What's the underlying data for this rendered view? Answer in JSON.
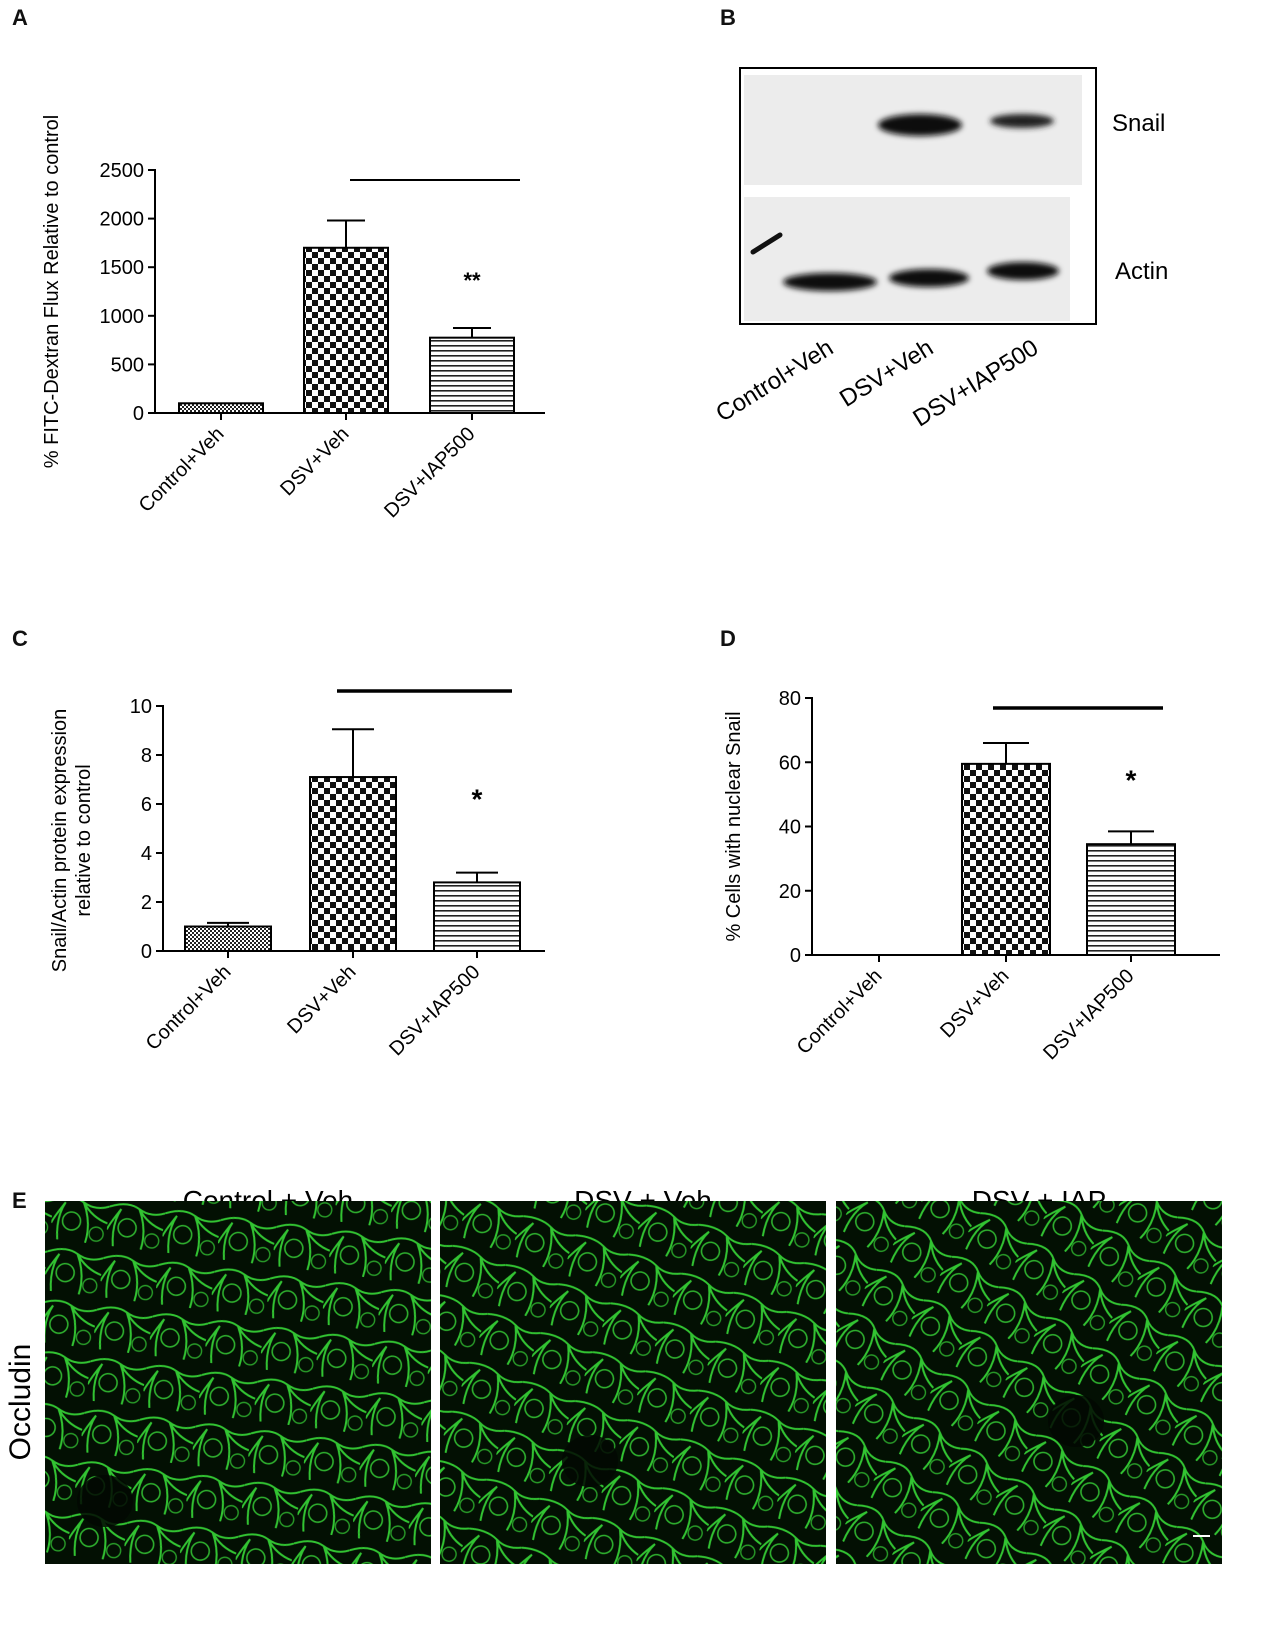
{
  "panels": {
    "A": "A",
    "B": "B",
    "C": "C",
    "D": "D",
    "E": "E"
  },
  "chart_data": [
    {
      "id": "A",
      "type": "bar",
      "categories": [
        "Control+Veh",
        "DSV+Veh",
        "DSV+IAP500"
      ],
      "values": [
        100,
        1700,
        775
      ],
      "errors": [
        0,
        280,
        100
      ],
      "patterns": [
        "fine-check",
        "check",
        "hstripe"
      ],
      "ylabel": "% FITC-Dextran Flux Relative to control",
      "ylim": [
        0,
        2500
      ],
      "yticks": [
        0,
        500,
        1000,
        1500,
        2000,
        2500
      ],
      "significance": [
        {
          "between": [
            1,
            2
          ],
          "label": "**",
          "on": 2
        }
      ]
    },
    {
      "id": "C",
      "type": "bar",
      "categories": [
        "Control+Veh",
        "DSV+Veh",
        "DSV+IAP500"
      ],
      "values": [
        1.0,
        7.1,
        2.8
      ],
      "errors": [
        0.15,
        1.95,
        0.4
      ],
      "patterns": [
        "fine-check",
        "check",
        "hstripe"
      ],
      "ylabel": [
        "Snail/Actin protein expression",
        "relative to control"
      ],
      "ylim": [
        0,
        10
      ],
      "yticks": [
        0,
        2,
        4,
        6,
        8,
        10
      ],
      "significance": [
        {
          "between": [
            1,
            2
          ],
          "label": "*",
          "on": 2
        }
      ]
    },
    {
      "id": "D",
      "type": "bar",
      "categories": [
        "Control+Veh",
        "DSV+Veh",
        "DSV+IAP500"
      ],
      "values": [
        0,
        59.5,
        34.5
      ],
      "errors": [
        0,
        6.5,
        4
      ],
      "patterns": [
        "fine-check",
        "check",
        "hstripe"
      ],
      "ylabel": "% Cells with nuclear Snail",
      "ylim": [
        0,
        80
      ],
      "yticks": [
        0,
        20,
        40,
        60,
        80
      ],
      "significance": [
        {
          "between": [
            1,
            2
          ],
          "label": "*",
          "on": 2
        }
      ]
    }
  ],
  "blot": {
    "bands": [
      "Snail",
      "Actin"
    ],
    "lanes": [
      "Control+Veh",
      "DSV+Veh",
      "DSV+IAP500"
    ]
  },
  "micrographs": {
    "titles": [
      "Control + Veh",
      "DSV + Veh",
      "DSV + IAP"
    ],
    "row_label": "Occludin",
    "color": "#38d838"
  }
}
